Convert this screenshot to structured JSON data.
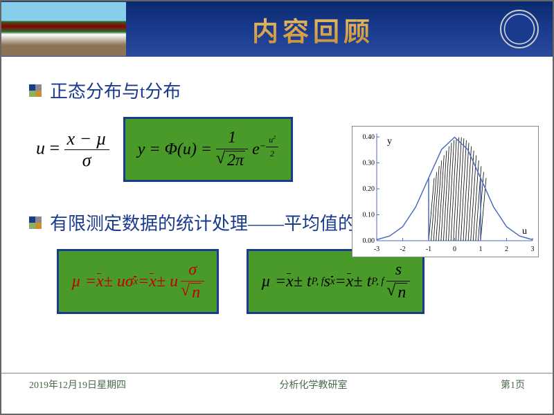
{
  "header": {
    "title": "内容回顾"
  },
  "bullet1": {
    "text": "正态分布与t分布"
  },
  "bullet2": {
    "text": "有限测定数据的统计处理——平均值的置信区间"
  },
  "formula_u": {
    "lhs": "u",
    "num": "x − µ",
    "den": "σ"
  },
  "formula_phi": {
    "lhs": "y = Φ(u) =",
    "frac_num": "1",
    "frac_den_pre": "2π",
    "e": "e",
    "exp_num": "u",
    "exp_sup": "2",
    "exp_den": "2"
  },
  "formula_ci1": {
    "text_parts": [
      "µ = ",
      " ± uσ",
      " = ",
      " ± u"
    ],
    "xbar": "x",
    "sub_xbar": "x̄",
    "frac_num": "σ",
    "frac_den": "n"
  },
  "formula_ci2": {
    "text_parts": [
      "µ = ",
      " ± t",
      "s",
      " = ",
      " ± t"
    ],
    "xbar": "x",
    "sub_pf": "P, f",
    "sub_xbar": "x̄",
    "frac_num": "s",
    "frac_den": "n"
  },
  "chart": {
    "type": "line",
    "xlabel": "u",
    "ylabel": "y",
    "xlim": [
      -3,
      3
    ],
    "ylim": [
      0,
      0.4
    ],
    "xticks": [
      -3,
      -2,
      -1,
      0,
      1,
      2,
      3
    ],
    "yticks": [
      0.0,
      0.1,
      0.2,
      0.3,
      0.4
    ],
    "curve_color": "#4a6ac0",
    "shade_region": [
      -1,
      1
    ],
    "shade_style": "diagonal-hatch",
    "shade_color": "#000000",
    "background_color": "#ffffff",
    "axis_color": "#4a6ac0",
    "label_fontsize": 12,
    "tick_fontsize": 10,
    "curve_points_x": [
      -3,
      -2.5,
      -2,
      -1.5,
      -1,
      -0.5,
      0,
      0.5,
      1,
      1.5,
      2,
      2.5,
      3
    ],
    "curve_points_y": [
      0.004,
      0.018,
      0.054,
      0.13,
      0.242,
      0.352,
      0.399,
      0.352,
      0.242,
      0.13,
      0.054,
      0.018,
      0.004
    ]
  },
  "footer": {
    "date": "2019年12月19日星期四",
    "center": "分析化学教研室",
    "page": "第1页"
  },
  "colors": {
    "header_bg": "#1a3a8e",
    "title_gold": "#c89030",
    "bullet_text": "#1a3a8e",
    "green_box_bg": "#4a9a2a",
    "green_box_border": "#1a3a8e",
    "red_formula": "#c00000",
    "black_formula": "#000000",
    "footer_text": "#4a6a4a"
  }
}
